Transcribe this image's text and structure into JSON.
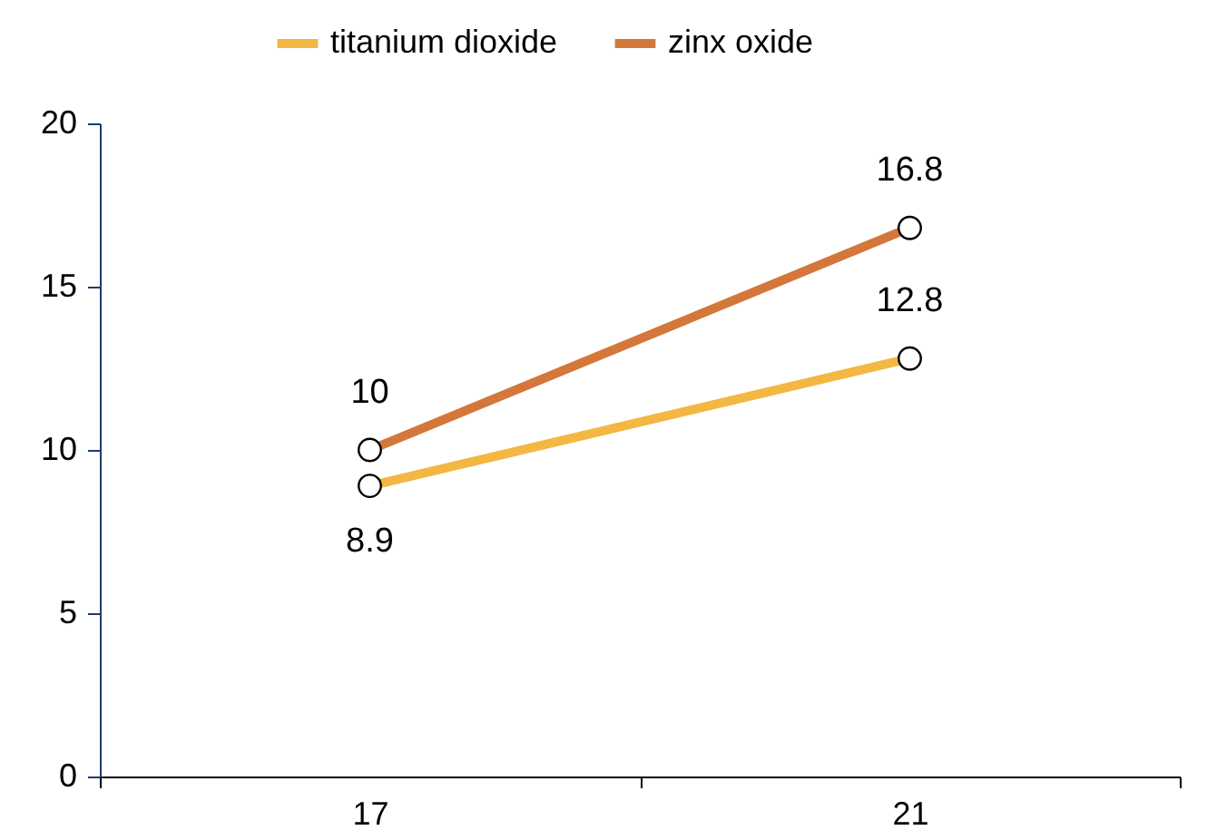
{
  "chart_data": {
    "type": "line",
    "categories": [
      "17",
      "21"
    ],
    "series": [
      {
        "name": "titanium dioxide",
        "color": "#f3b743",
        "values": [
          8.9,
          12.8
        ]
      },
      {
        "name": "zinx oxide",
        "color": "#d4773a",
        "values": [
          10,
          16.8
        ]
      }
    ],
    "ylim": [
      0,
      20
    ],
    "yticks": [
      0,
      5,
      10,
      15,
      20
    ],
    "grid": false,
    "legend": "top",
    "marker": "circle",
    "line_style": "solid",
    "data_labels": true
  }
}
